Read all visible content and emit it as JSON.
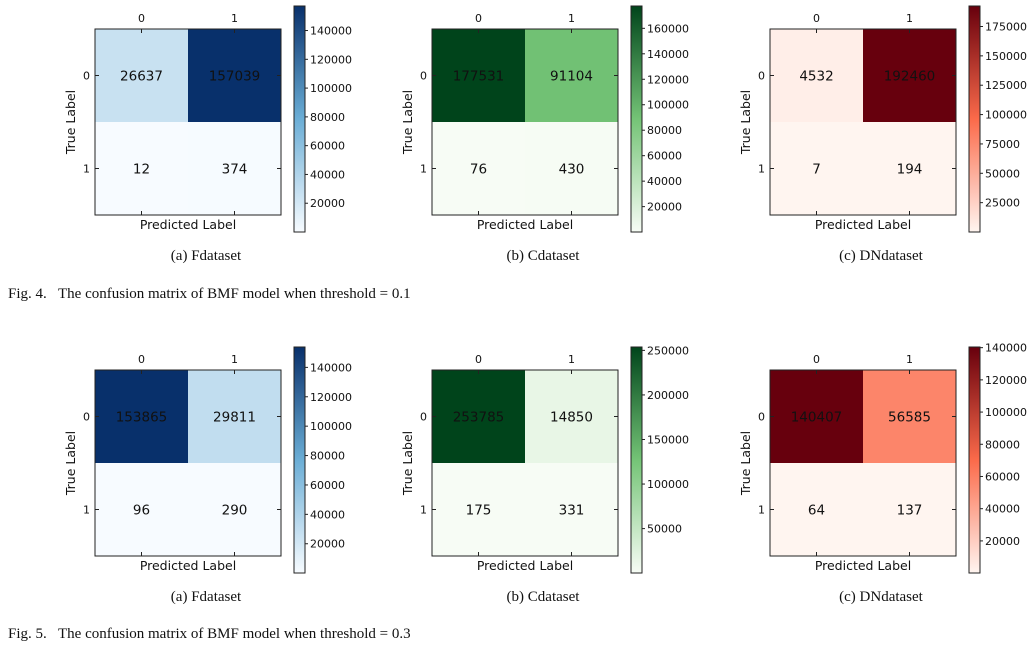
{
  "figures": [
    {
      "caption": "Fig. 4.   The confusion matrix of BMF model when threshold = 0.1"
    },
    {
      "caption": "Fig. 5.   The confusion matrix of BMF model when threshold = 0.3"
    }
  ],
  "chart_data": [
    {
      "type": "heatmap",
      "figure": 0,
      "colormap": "Blues",
      "subcaption": "(a)  Fdataset",
      "xlabel": "Predicted Label",
      "ylabel": "True Label",
      "x_ticks": [
        "0",
        "1"
      ],
      "y_ticks": [
        "0",
        "1"
      ],
      "matrix": [
        [
          26637,
          157039
        ],
        [
          12,
          374
        ]
      ],
      "colorbar_ticks": [
        20000,
        40000,
        60000,
        80000,
        100000,
        120000,
        140000
      ],
      "colorbar_range": [
        12,
        157039
      ]
    },
    {
      "type": "heatmap",
      "figure": 0,
      "colormap": "Greens",
      "subcaption": "(b)  Cdataset",
      "xlabel": "Predicted Label",
      "ylabel": "True Label",
      "x_ticks": [
        "0",
        "1"
      ],
      "y_ticks": [
        "0",
        "1"
      ],
      "matrix": [
        [
          177531,
          91104
        ],
        [
          76,
          430
        ]
      ],
      "colorbar_ticks": [
        20000,
        40000,
        60000,
        80000,
        100000,
        120000,
        140000,
        160000
      ],
      "colorbar_range": [
        76,
        177531
      ]
    },
    {
      "type": "heatmap",
      "figure": 0,
      "colormap": "Reds",
      "subcaption": "(c)  DNdataset",
      "xlabel": "Predicted Label",
      "ylabel": "True Label",
      "x_ticks": [
        "0",
        "1"
      ],
      "y_ticks": [
        "0",
        "1"
      ],
      "matrix": [
        [
          4532,
          192460
        ],
        [
          7,
          194
        ]
      ],
      "colorbar_ticks": [
        25000,
        50000,
        75000,
        100000,
        125000,
        150000,
        175000
      ],
      "colorbar_range": [
        7,
        192460
      ]
    },
    {
      "type": "heatmap",
      "figure": 1,
      "colormap": "Blues",
      "subcaption": "(a)  Fdataset",
      "xlabel": "Predicted Label",
      "ylabel": "True Label",
      "x_ticks": [
        "0",
        "1"
      ],
      "y_ticks": [
        "0",
        "1"
      ],
      "matrix": [
        [
          153865,
          29811
        ],
        [
          96,
          290
        ]
      ],
      "colorbar_ticks": [
        20000,
        40000,
        60000,
        80000,
        100000,
        120000,
        140000
      ],
      "colorbar_range": [
        96,
        153865
      ]
    },
    {
      "type": "heatmap",
      "figure": 1,
      "colormap": "Greens",
      "subcaption": "(b)  Cdataset",
      "xlabel": "Predicted Label",
      "ylabel": "True Label",
      "x_ticks": [
        "0",
        "1"
      ],
      "y_ticks": [
        "0",
        "1"
      ],
      "matrix": [
        [
          253785,
          14850
        ],
        [
          175,
          331
        ]
      ],
      "colorbar_ticks": [
        50000,
        100000,
        150000,
        200000,
        250000
      ],
      "colorbar_range": [
        175,
        253785
      ]
    },
    {
      "type": "heatmap",
      "figure": 1,
      "colormap": "Reds",
      "subcaption": "(c)  DNdataset",
      "xlabel": "Predicted Label",
      "ylabel": "True Label",
      "x_ticks": [
        "0",
        "1"
      ],
      "y_ticks": [
        "0",
        "1"
      ],
      "matrix": [
        [
          140407,
          56585
        ],
        [
          64,
          137
        ]
      ],
      "colorbar_ticks": [
        20000,
        40000,
        60000,
        80000,
        100000,
        120000,
        140000
      ],
      "colorbar_range": [
        64,
        140407
      ]
    }
  ]
}
